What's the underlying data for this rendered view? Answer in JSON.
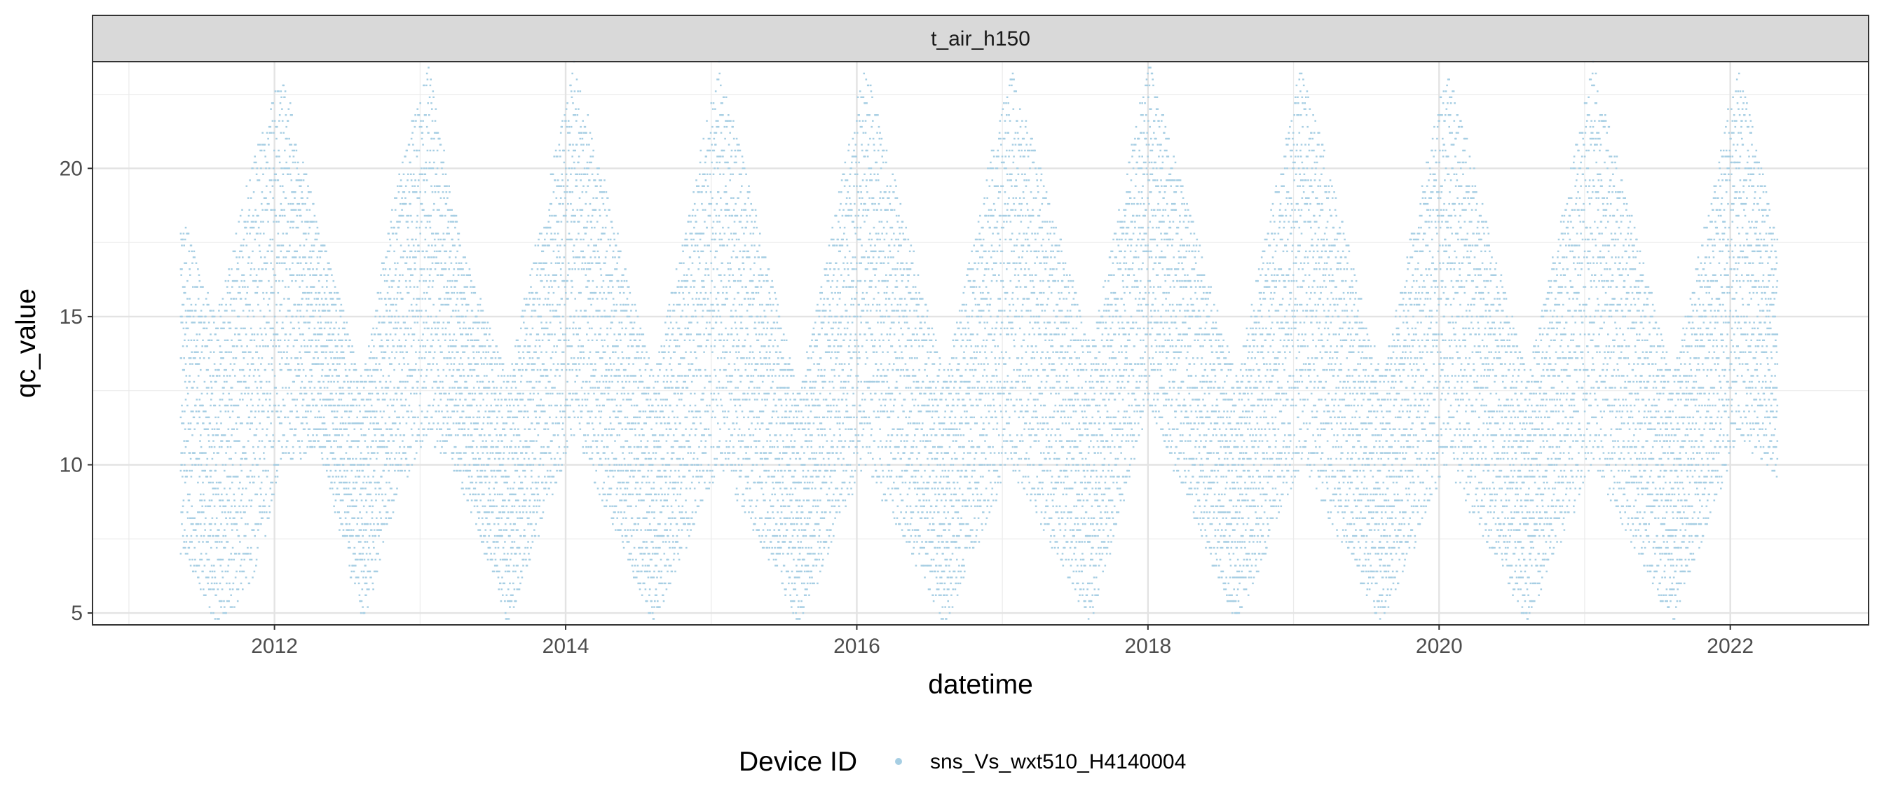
{
  "chart_data": {
    "type": "scatter",
    "facet_label": "t_air_h150",
    "xlabel": "datetime",
    "ylabel": "qc_value",
    "x_ticks": [
      "2012",
      "2014",
      "2016",
      "2018",
      "2020",
      "2022"
    ],
    "x_tick_values": [
      2012,
      2014,
      2016,
      2018,
      2020,
      2022
    ],
    "y_ticks": [
      "5",
      "10",
      "15",
      "20"
    ],
    "y_tick_values": [
      5,
      10,
      15,
      20
    ],
    "xlim": [
      2010.75,
      2022.95
    ],
    "ylim": [
      4.6,
      23.6
    ],
    "grid": true,
    "legend": {
      "position": "bottom",
      "title": "Device ID",
      "entries": [
        "sns_Vs_wxt510_H4140004"
      ]
    },
    "colors": {
      "point": "#a6cee3",
      "strip_bg": "#d9d9d9",
      "grid": "#ebebeb"
    },
    "series": [
      {
        "name": "sns_Vs_wxt510_H4140004",
        "x_start": 2011.35,
        "x_end": 2022.32,
        "summer_peaks": [
          2012.05,
          2013.05,
          2014.05,
          2015.05,
          2016.05,
          2017.05,
          2018.05,
          2019.05,
          2020.05,
          2021.05,
          2022.05
        ],
        "envelope": [
          {
            "x": 2011.35,
            "min": 7.0,
            "max": 18.5
          },
          {
            "x": 2011.6,
            "min": 4.6,
            "max": 15.0
          },
          {
            "x": 2011.85,
            "min": 6.0,
            "max": 20.5
          },
          {
            "x": 2012.05,
            "min": 10.0,
            "max": 23.3
          },
          {
            "x": 2012.3,
            "min": 10.5,
            "max": 18.0
          },
          {
            "x": 2012.6,
            "min": 4.6,
            "max": 13.0
          },
          {
            "x": 2012.85,
            "min": 9.0,
            "max": 20.0
          },
          {
            "x": 2013.05,
            "min": 11.0,
            "max": 23.6
          },
          {
            "x": 2013.3,
            "min": 9.0,
            "max": 17.0
          },
          {
            "x": 2013.6,
            "min": 4.6,
            "max": 13.0
          },
          {
            "x": 2014.05,
            "min": 11.0,
            "max": 23.6
          },
          {
            "x": 2014.6,
            "min": 4.6,
            "max": 13.0
          },
          {
            "x": 2015.05,
            "min": 10.0,
            "max": 23.6
          },
          {
            "x": 2015.6,
            "min": 4.6,
            "max": 12.5
          },
          {
            "x": 2016.05,
            "min": 10.0,
            "max": 23.6
          },
          {
            "x": 2016.6,
            "min": 4.6,
            "max": 13.0
          },
          {
            "x": 2017.05,
            "min": 10.0,
            "max": 23.6
          },
          {
            "x": 2017.6,
            "min": 4.6,
            "max": 14.0
          },
          {
            "x": 2018.0,
            "min": 12.0,
            "max": 23.6
          },
          {
            "x": 2018.6,
            "min": 4.6,
            "max": 13.0
          },
          {
            "x": 2019.05,
            "min": 10.0,
            "max": 23.6
          },
          {
            "x": 2019.6,
            "min": 4.6,
            "max": 13.0
          },
          {
            "x": 2020.05,
            "min": 10.0,
            "max": 23.6
          },
          {
            "x": 2020.6,
            "min": 4.6,
            "max": 13.0
          },
          {
            "x": 2021.05,
            "min": 10.0,
            "max": 23.6
          },
          {
            "x": 2021.6,
            "min": 4.6,
            "max": 13.0
          },
          {
            "x": 2022.05,
            "min": 11.0,
            "max": 23.6
          },
          {
            "x": 2022.32,
            "min": 9.5,
            "max": 17.5
          }
        ]
      }
    ]
  }
}
